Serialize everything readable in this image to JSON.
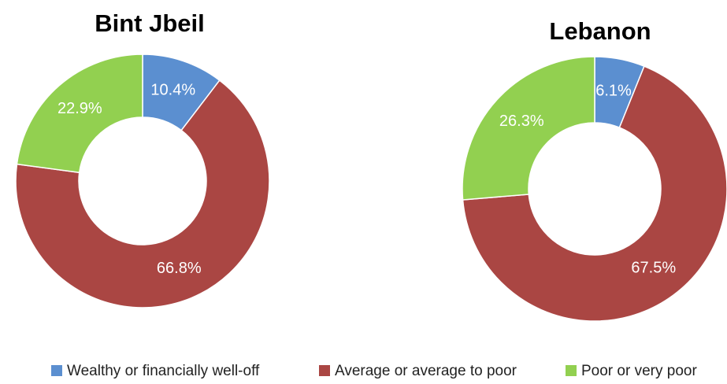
{
  "chart_data": [
    {
      "type": "donut",
      "title": "Bint Jbeil",
      "categories": [
        "Wealthy or financially well-off",
        "Average or average to poor",
        "Poor or very poor"
      ],
      "values": [
        10.4,
        66.8,
        22.9
      ],
      "value_labels": [
        "10.4%",
        "66.8%",
        "22.9%"
      ],
      "colors": [
        "#5b8fd0",
        "#aa4643",
        "#92d050"
      ]
    },
    {
      "type": "donut",
      "title": "Lebanon",
      "categories": [
        "Wealthy or financially well-off",
        "Average or average to poor",
        "Poor or very poor"
      ],
      "values": [
        6.1,
        67.5,
        26.3
      ],
      "value_labels": [
        "6.1%",
        "67.5%",
        "26.3%"
      ],
      "colors": [
        "#5b8fd0",
        "#aa4643",
        "#92d050"
      ]
    }
  ]
}
